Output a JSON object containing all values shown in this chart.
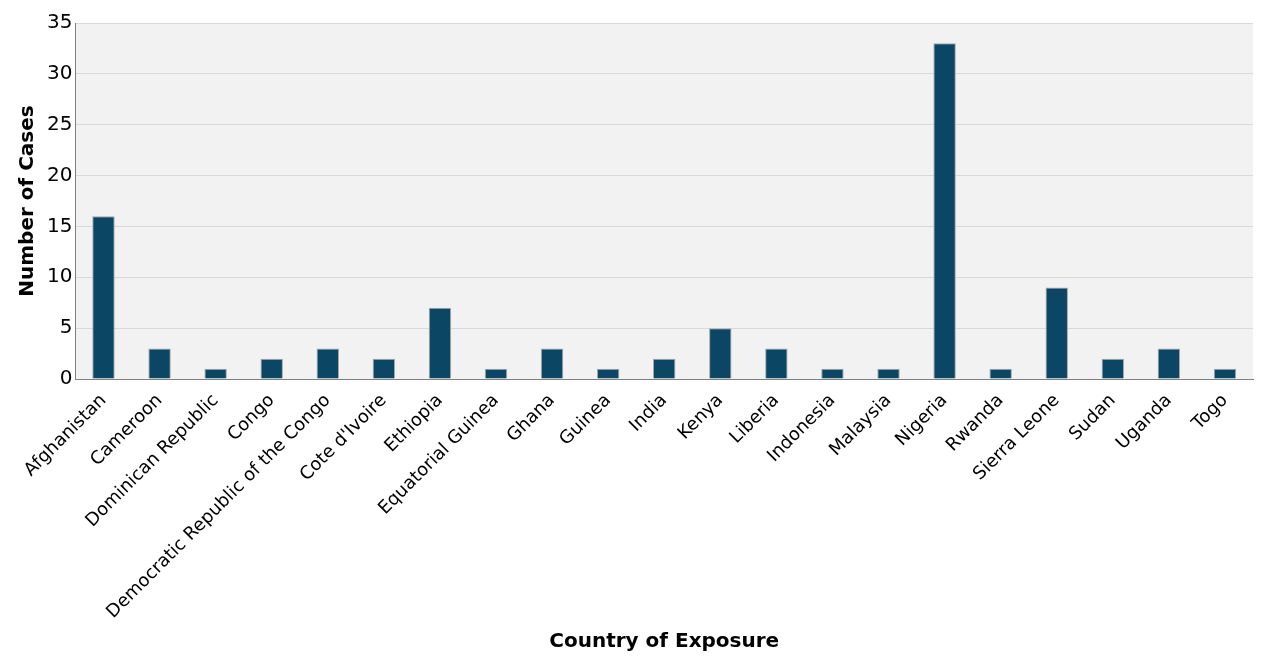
{
  "chart_data": {
    "type": "bar",
    "xlabel": "Country of Exposure",
    "ylabel": "Number of Cases",
    "categories": [
      "Afghanistan",
      "Cameroon",
      "Dominican Republic",
      "Congo",
      "Democratic Republic of the Congo",
      "Cote d'Ivoire",
      "Ethiopia",
      "Equatorial Guinea",
      "Ghana",
      "Guinea",
      "India",
      "Kenya",
      "Liberia",
      "Indonesia",
      "Malaysia",
      "Nigeria",
      "Rwanda",
      "Sierra Leone",
      "Sudan",
      "Uganda",
      "Togo"
    ],
    "values": [
      16,
      3,
      1,
      2,
      3,
      2,
      7,
      1,
      3,
      1,
      2,
      5,
      3,
      1,
      1,
      33,
      1,
      9,
      2,
      3,
      1
    ],
    "color": "#0b4765",
    "ylim": [
      0,
      35
    ],
    "yticks": [
      0,
      5,
      10,
      15,
      20,
      25,
      30,
      35
    ],
    "grid": "y",
    "legend": false
  }
}
